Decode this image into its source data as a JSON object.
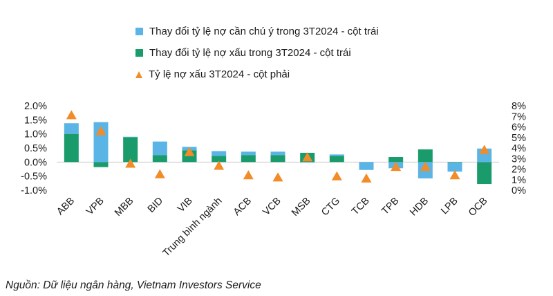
{
  "chart_data": {
    "type": "bar+scatter",
    "categories": [
      "ABB",
      "VPB",
      "MBB",
      "BID",
      "VIB",
      "Trung bình ngành",
      "ACB",
      "VCB",
      "MSB",
      "CTG",
      "TCB",
      "TPB",
      "HDB",
      "LPB",
      "OCB"
    ],
    "series": [
      {
        "name": "Thay đổi tỷ lệ nợ cần chú ý trong 3T2024 - cột trái",
        "type": "bar",
        "axis": "left",
        "color": "#5ab4e5",
        "values": [
          0.38,
          1.42,
          0.02,
          0.48,
          0.12,
          0.17,
          0.12,
          0.12,
          -0.02,
          0.05,
          -0.28,
          -0.22,
          -0.58,
          -0.32,
          0.48
        ]
      },
      {
        "name": "Thay đổi tỷ lệ nợ xấu trong 3T2024 - cột trái",
        "type": "bar",
        "axis": "left",
        "color": "#1a9b6c",
        "values": [
          1.0,
          -0.18,
          0.88,
          0.25,
          0.42,
          0.22,
          0.25,
          0.25,
          0.33,
          0.22,
          0.0,
          0.18,
          0.45,
          -0.02,
          -0.78
        ]
      },
      {
        "name": "Tỷ lệ nợ xấu 3T2024 - cột phải",
        "type": "scatter",
        "axis": "right",
        "color": "#f28c28",
        "values": [
          7.1,
          5.6,
          2.5,
          1.5,
          3.6,
          2.3,
          1.4,
          1.2,
          3.1,
          1.3,
          1.1,
          2.2,
          2.2,
          1.4,
          3.8
        ]
      }
    ],
    "y_left": {
      "ylim": [
        -1.0,
        2.0
      ],
      "ticks": [
        -1.0,
        -0.5,
        0.0,
        0.5,
        1.0,
        1.5,
        2.0
      ],
      "tick_labels": [
        "-1.0%",
        "-0.5%",
        "0.0%",
        "0.5%",
        "1.0%",
        "1.5%",
        "2.0%"
      ]
    },
    "y_right": {
      "ylim": [
        0,
        8
      ],
      "ticks": [
        0,
        1,
        2,
        3,
        4,
        5,
        6,
        7,
        8
      ],
      "tick_labels": [
        "0%",
        "1%",
        "2%",
        "3%",
        "4%",
        "5%",
        "6%",
        "7%",
        "8%"
      ]
    },
    "legend": "top",
    "grid": false,
    "source": "Nguồn: Dữ liệu ngân hàng, Vietnam Investors Service"
  }
}
